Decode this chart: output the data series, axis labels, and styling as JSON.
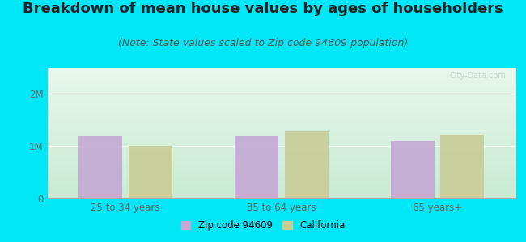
{
  "title": "Breakdown of mean house values by ages of householders",
  "subtitle": "(Note: State values scaled to Zip code 94609 population)",
  "categories": [
    "25 to 34 years",
    "35 to 64 years",
    "65 years+"
  ],
  "zip_values": [
    1200000,
    1200000,
    1100000
  ],
  "ca_values": [
    1000000,
    1280000,
    1220000
  ],
  "zip_color": "#c4a8d4",
  "ca_color": "#c8cc96",
  "ylim": [
    0,
    2500000
  ],
  "yticks": [
    0,
    1000000,
    2000000
  ],
  "ytick_labels": [
    "0",
    "1M",
    "2M"
  ],
  "bg_top": "#e8f8ee",
  "bg_bottom": "#d0f0d8",
  "outer_bg": "#00e8f8",
  "legend_zip_label": "Zip code 94609",
  "legend_ca_label": "California",
  "bar_width": 0.28,
  "title_fontsize": 13,
  "subtitle_fontsize": 9,
  "tick_label_color": "#666666",
  "watermark": "City-Data.com"
}
